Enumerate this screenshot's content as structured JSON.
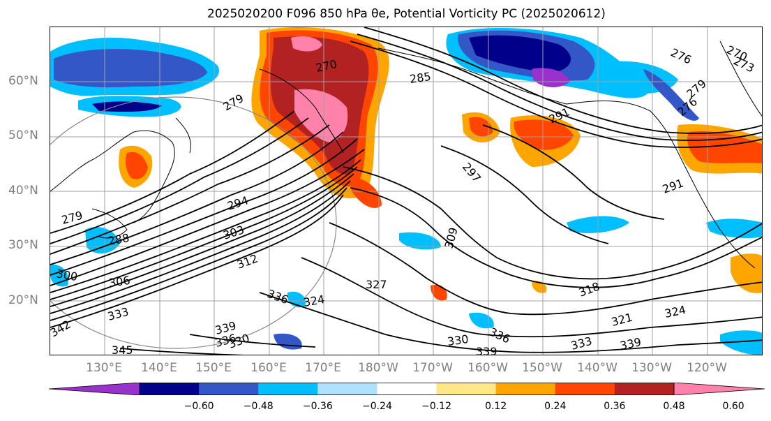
{
  "title": "2025020200 F096 850 hPa θe, Potential Vorticity PC (2025020612)",
  "latitude_labels": [
    "60°N",
    "50°N",
    "40°N",
    "30°N",
    "20°N"
  ],
  "longitude_labels": [
    "130°E",
    "140°E",
    "150°E",
    "160°E",
    "170°E",
    "180°W",
    "170°W",
    "160°W",
    "150°W",
    "140°W",
    "130°W",
    "120°W"
  ],
  "colorbar": {
    "ticks": [
      "−0.60",
      "−0.48",
      "−0.36",
      "−0.24",
      "−0.12",
      "0.12",
      "0.24",
      "0.36",
      "0.48",
      "0.60"
    ],
    "colors": [
      "#9932cc",
      "#00008b",
      "#3457c8",
      "#00bfff",
      "#b0e2ff",
      "#ffffff",
      "#ffe78a",
      "#ffa500",
      "#ff4500",
      "#b22222",
      "#ff82ab"
    ]
  },
  "contour_labels": [
    "270",
    "285",
    "279",
    "291",
    "297",
    "294",
    "303",
    "312",
    "306",
    "300",
    "288",
    "279",
    "333",
    "336",
    "324",
    "327",
    "309",
    "318",
    "321",
    "324",
    "339",
    "336",
    "330",
    "339",
    "336",
    "333",
    "339",
    "330",
    "345",
    "342",
    "276",
    "279",
    "276",
    "291",
    "270",
    "273"
  ]
}
